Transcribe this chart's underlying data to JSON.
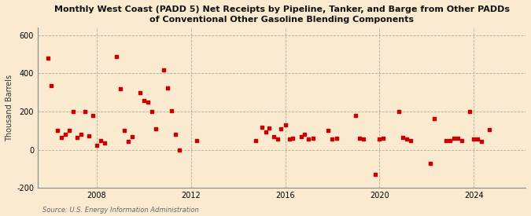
{
  "title": "Monthly West Coast (PADD 5) Net Receipts by Pipeline, Tanker, and Barge from Other PADDs\nof Conventional Other Gasoline Blending Components",
  "ylabel": "Thousand Barrels",
  "source": "Source: U.S. Energy Information Administration",
  "background_color": "#faebd0",
  "marker_color": "#cc0000",
  "xlim_start": 2005.5,
  "xlim_end": 2026.2,
  "ylim_bottom": -200,
  "ylim_top": 640,
  "yticks": [
    -200,
    0,
    200,
    400,
    600
  ],
  "xticks": [
    2008,
    2012,
    2016,
    2020,
    2024
  ],
  "data_x": [
    2005.92,
    2006.08,
    2006.33,
    2006.5,
    2006.67,
    2006.83,
    2007.0,
    2007.17,
    2007.33,
    2007.5,
    2007.67,
    2007.83,
    2008.0,
    2008.17,
    2008.33,
    2008.83,
    2009.0,
    2009.17,
    2009.33,
    2009.5,
    2009.83,
    2010.0,
    2010.17,
    2010.33,
    2010.5,
    2010.83,
    2011.0,
    2011.17,
    2011.33,
    2011.5,
    2012.25,
    2014.75,
    2015.0,
    2015.17,
    2015.33,
    2015.5,
    2015.67,
    2015.83,
    2016.0,
    2016.17,
    2016.33,
    2016.67,
    2016.83,
    2017.0,
    2017.17,
    2017.83,
    2018.0,
    2018.17,
    2019.0,
    2019.17,
    2019.33,
    2019.83,
    2020.0,
    2020.17,
    2020.83,
    2021.0,
    2021.17,
    2021.33,
    2022.17,
    2022.33,
    2022.83,
    2023.0,
    2023.17,
    2023.33,
    2023.5,
    2023.83,
    2024.0,
    2024.17,
    2024.33,
    2024.67
  ],
  "data_y": [
    480,
    335,
    100,
    65,
    80,
    100,
    200,
    65,
    80,
    200,
    75,
    180,
    25,
    50,
    35,
    490,
    320,
    100,
    45,
    70,
    300,
    260,
    250,
    200,
    110,
    420,
    325,
    205,
    80,
    0,
    50,
    50,
    120,
    95,
    115,
    70,
    55,
    110,
    130,
    55,
    60,
    70,
    80,
    55,
    60,
    100,
    55,
    60,
    180,
    60,
    55,
    -130,
    55,
    60,
    200,
    65,
    55,
    50,
    -70,
    165,
    50,
    50,
    60,
    60,
    50,
    200,
    55,
    55,
    45,
    105
  ]
}
